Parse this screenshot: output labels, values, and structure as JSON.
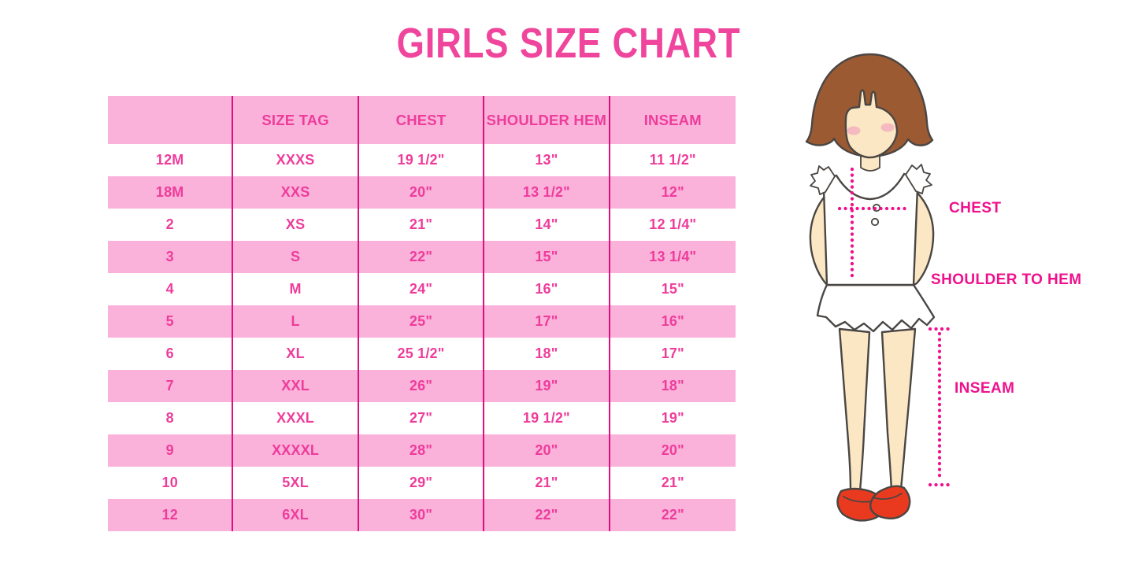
{
  "title": "GIRLS SIZE CHART",
  "colors": {
    "accent": "#F0108C",
    "title": "#F0459C",
    "text": "#EE3C9B",
    "band": "#FAB2DA",
    "divider": "#DE0F80",
    "hair": "#9C5A32",
    "skin": "#FBE7C3",
    "blush": "#F3AFBF",
    "shoe": "#E93A1F",
    "outline": "#4A4643"
  },
  "table": {
    "columns": [
      "",
      "SIZE TAG",
      "CHEST",
      "SHOULDER HEM",
      "INSEAM"
    ],
    "rows": [
      [
        "12M",
        "XXXS",
        "19 1/2\"",
        "13\"",
        "11 1/2\""
      ],
      [
        "18M",
        "XXS",
        "20\"",
        "13 1/2\"",
        "12\""
      ],
      [
        "2",
        "XS",
        "21\"",
        "14\"",
        "12 1/4\""
      ],
      [
        "3",
        "S",
        "22\"",
        "15\"",
        "13 1/4\""
      ],
      [
        "4",
        "M",
        "24\"",
        "16\"",
        "15\""
      ],
      [
        "5",
        "L",
        "25\"",
        "17\"",
        "16\""
      ],
      [
        "6",
        "XL",
        "25 1/2\"",
        "18\"",
        "17\""
      ],
      [
        "7",
        "XXL",
        "26\"",
        "19\"",
        "18\""
      ],
      [
        "8",
        "XXXL",
        "27\"",
        "19 1/2\"",
        "19\""
      ],
      [
        "9",
        "XXXXL",
        "28\"",
        "20\"",
        "20\""
      ],
      [
        "10",
        "5XL",
        "29\"",
        "21\"",
        "21\""
      ],
      [
        "12",
        "6XL",
        "30\"",
        "22\"",
        "22\""
      ]
    ]
  },
  "figure": {
    "labels": {
      "chest": "CHEST",
      "shoulder_to_hem": "SHOULDER TO HEM",
      "inseam": "INSEAM"
    }
  }
}
